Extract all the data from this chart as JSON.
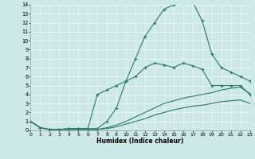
{
  "bg_color": "#cde8e8",
  "line_color": "#2a7a6a",
  "xlabel": "Humidex (Indice chaleur)",
  "xlim": [
    0,
    23
  ],
  "ylim": [
    0,
    14
  ],
  "xticks": [
    0,
    1,
    2,
    3,
    4,
    5,
    6,
    7,
    8,
    9,
    10,
    11,
    12,
    13,
    14,
    15,
    16,
    17,
    18,
    19,
    20,
    21,
    22,
    23
  ],
  "yticks": [
    0,
    1,
    2,
    3,
    4,
    5,
    6,
    7,
    8,
    9,
    10,
    11,
    12,
    13,
    14
  ],
  "line1_x": [
    0,
    1,
    2,
    3,
    4,
    5,
    6,
    7,
    8,
    9,
    10,
    11,
    12,
    13,
    14,
    15,
    16,
    17,
    18,
    19,
    20,
    21,
    22,
    23
  ],
  "line1_y": [
    1.0,
    0.3,
    0.1,
    0.1,
    0.2,
    0.2,
    0.2,
    0.2,
    1.0,
    2.5,
    5.5,
    8.0,
    10.5,
    12.0,
    13.5,
    14.0,
    14.2,
    14.3,
    12.2,
    8.5,
    7.0,
    6.5,
    6.0,
    5.5
  ],
  "line2_x": [
    0,
    1,
    2,
    3,
    4,
    5,
    6,
    7,
    8,
    9,
    10,
    11,
    12,
    13,
    14,
    15,
    16,
    17,
    18,
    19,
    20,
    21,
    22,
    23
  ],
  "line2_y": [
    1.0,
    0.3,
    0.1,
    0.1,
    0.2,
    0.2,
    0.2,
    4.0,
    4.5,
    5.0,
    5.5,
    6.0,
    7.0,
    7.5,
    7.3,
    7.0,
    7.5,
    7.2,
    6.8,
    5.0,
    5.0,
    5.0,
    5.0,
    4.0
  ],
  "line3_x": [
    0,
    1,
    2,
    3,
    4,
    5,
    6,
    7,
    8,
    9,
    10,
    11,
    12,
    13,
    14,
    15,
    16,
    17,
    18,
    19,
    20,
    21,
    22,
    23
  ],
  "line3_y": [
    1.0,
    0.3,
    0.1,
    0.1,
    0.1,
    0.1,
    0.1,
    0.1,
    0.3,
    0.6,
    1.0,
    1.5,
    2.0,
    2.5,
    3.0,
    3.3,
    3.6,
    3.8,
    4.0,
    4.2,
    4.5,
    4.7,
    4.8,
    4.1
  ],
  "line4_x": [
    0,
    1,
    2,
    3,
    4,
    5,
    6,
    7,
    8,
    9,
    10,
    11,
    12,
    13,
    14,
    15,
    16,
    17,
    18,
    19,
    20,
    21,
    22,
    23
  ],
  "line4_y": [
    1.0,
    0.3,
    0.1,
    0.1,
    0.1,
    0.1,
    0.1,
    0.1,
    0.2,
    0.4,
    0.7,
    1.0,
    1.3,
    1.7,
    2.0,
    2.3,
    2.5,
    2.7,
    2.8,
    3.0,
    3.2,
    3.3,
    3.4,
    3.0
  ]
}
